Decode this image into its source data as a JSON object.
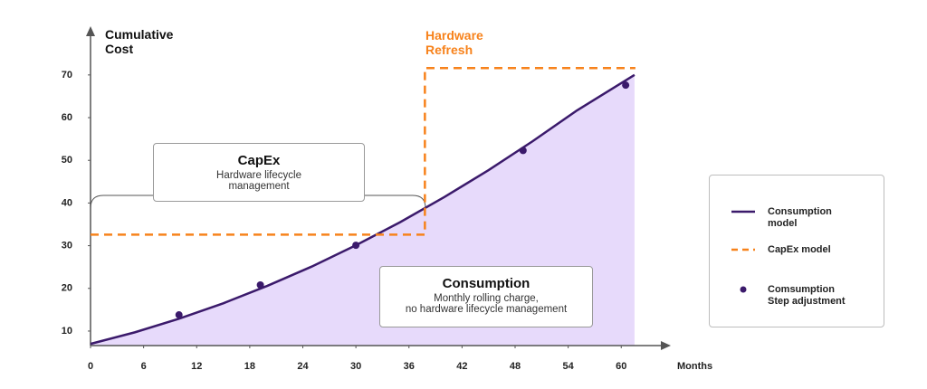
{
  "chart_data": {
    "type": "line",
    "y_label": "Cumulative Cost",
    "x_label": "Months",
    "xlim": [
      0,
      65.5
    ],
    "ylim": [
      6.6,
      81.2
    ],
    "xticks": [
      0,
      6,
      12,
      18,
      24,
      30,
      36,
      42,
      48,
      54,
      60
    ],
    "yticks": [
      10,
      20,
      30,
      40,
      50,
      60,
      70
    ],
    "grid": false,
    "legend": "right",
    "series": [
      {
        "name": "Consumption model",
        "type": "line",
        "color": "#3b1a6b",
        "fill": "#e7dafb",
        "x": [
          0,
          5,
          10,
          15,
          20,
          25,
          30,
          35,
          40,
          45,
          50,
          55,
          61.5
        ],
        "values": [
          7,
          9.7,
          12.9,
          16.5,
          20.6,
          25.1,
          30.1,
          35.5,
          41.4,
          47.7,
          54.5,
          61.7,
          70
        ]
      },
      {
        "name": "CapEx model",
        "type": "line",
        "dash": true,
        "color": "#f7821b",
        "x": [
          0,
          37.8,
          37.8,
          61.6
        ],
        "values": [
          32.6,
          32.6,
          71.6,
          71.6
        ]
      },
      {
        "name": "Comsumption Step adjustment",
        "type": "scatter",
        "color": "#3b1a6b",
        "x": [
          10,
          19.2,
          30,
          48.9,
          60.5
        ],
        "values": [
          13.8,
          20.8,
          30.1,
          52.3,
          67.6
        ]
      }
    ],
    "annotations": {
      "hardware_refresh": "Hardware Refresh",
      "capex": {
        "title": "CapEx",
        "lines": [
          "Hardware lifecycle",
          "management"
        ]
      },
      "consumption": {
        "title": "Consumption",
        "lines": [
          "Monthly rolling charge,",
          "no hardware lifecycle management"
        ]
      }
    }
  }
}
